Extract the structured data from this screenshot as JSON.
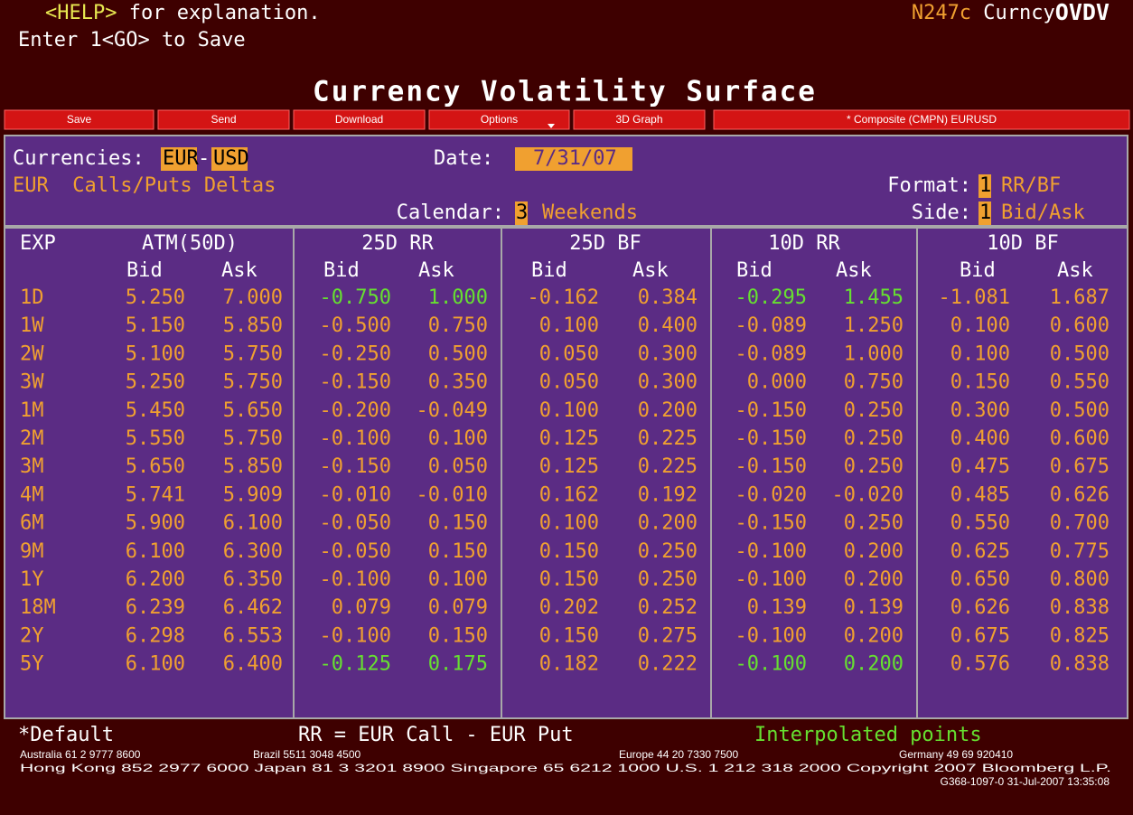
{
  "header": {
    "help_key": "<HELP>",
    "help_text": " for explanation.",
    "save_hint": "Enter 1<GO> to Save",
    "code": "N247c",
    "market": " Curncy",
    "function": "OVDV",
    "title": "Currency Volatility Surface"
  },
  "buttons": [
    "Save",
    "Send",
    "Download",
    "Options",
    "3D Graph",
    "* Composite (CMPN) EURUSD"
  ],
  "settings": {
    "currencies_label": "Currencies:",
    "currency1": "EUR",
    "dash": "-",
    "currency2": "USD",
    "date_label": "Date:",
    "date": "7/31/07",
    "deltas": "EUR  Calls/Puts Deltas",
    "format_label": "Format:",
    "format_code": "1",
    "format_value": "RR/BF",
    "calendar_label": "Calendar:",
    "calendar_code": "3",
    "calendar_value": "Weekends",
    "side_label": "Side:",
    "side_code": "1",
    "side_value": "Bid/Ask"
  },
  "table": {
    "columns": [
      "EXP",
      "ATM(50D)",
      "25D RR",
      "25D BF",
      "10D RR",
      "10D BF"
    ],
    "subheaders": [
      "Bid",
      "Ask",
      "Bid",
      "Ask",
      "Bid",
      "Ask",
      "Bid",
      "Ask",
      "Bid",
      "Ask"
    ],
    "color": "#f0a030",
    "interpolated_color": "#66e030",
    "rows": [
      {
        "exp": "1D",
        "values": [
          "5.250",
          "7.000",
          "-0.750",
          "1.000",
          "-0.162",
          "0.384",
          "-0.295",
          "1.455",
          "-1.081",
          "1.687"
        ],
        "interpolated": [
          2,
          3,
          6,
          7
        ]
      },
      {
        "exp": "1W",
        "values": [
          "5.150",
          "5.850",
          "-0.500",
          "0.750",
          "0.100",
          "0.400",
          "-0.089",
          "1.250",
          "0.100",
          "0.600"
        ]
      },
      {
        "exp": "2W",
        "values": [
          "5.100",
          "5.750",
          "-0.250",
          "0.500",
          "0.050",
          "0.300",
          "-0.089",
          "1.000",
          "0.100",
          "0.500"
        ]
      },
      {
        "exp": "3W",
        "values": [
          "5.250",
          "5.750",
          "-0.150",
          "0.350",
          "0.050",
          "0.300",
          "0.000",
          "0.750",
          "0.150",
          "0.550"
        ]
      },
      {
        "exp": "1M",
        "values": [
          "5.450",
          "5.650",
          "-0.200",
          "-0.049",
          "0.100",
          "0.200",
          "-0.150",
          "0.250",
          "0.300",
          "0.500"
        ]
      },
      {
        "exp": "2M",
        "values": [
          "5.550",
          "5.750",
          "-0.100",
          "0.100",
          "0.125",
          "0.225",
          "-0.150",
          "0.250",
          "0.400",
          "0.600"
        ]
      },
      {
        "exp": "3M",
        "values": [
          "5.650",
          "5.850",
          "-0.150",
          "0.050",
          "0.125",
          "0.225",
          "-0.150",
          "0.250",
          "0.475",
          "0.675"
        ]
      },
      {
        "exp": "4M",
        "values": [
          "5.741",
          "5.909",
          "-0.010",
          "-0.010",
          "0.162",
          "0.192",
          "-0.020",
          "-0.020",
          "0.485",
          "0.626"
        ]
      },
      {
        "exp": "6M",
        "values": [
          "5.900",
          "6.100",
          "-0.050",
          "0.150",
          "0.100",
          "0.200",
          "-0.150",
          "0.250",
          "0.550",
          "0.700"
        ]
      },
      {
        "exp": "9M",
        "values": [
          "6.100",
          "6.300",
          "-0.050",
          "0.150",
          "0.150",
          "0.250",
          "-0.100",
          "0.200",
          "0.625",
          "0.775"
        ]
      },
      {
        "exp": "1Y",
        "values": [
          "6.200",
          "6.350",
          "-0.100",
          "0.100",
          "0.150",
          "0.250",
          "-0.100",
          "0.200",
          "0.650",
          "0.800"
        ]
      },
      {
        "exp": "18M",
        "values": [
          "6.239",
          "6.462",
          "0.079",
          "0.079",
          "0.202",
          "0.252",
          "0.139",
          "0.139",
          "0.626",
          "0.838"
        ]
      },
      {
        "exp": "2Y",
        "values": [
          "6.298",
          "6.553",
          "-0.100",
          "0.150",
          "0.150",
          "0.275",
          "-0.100",
          "0.200",
          "0.675",
          "0.825"
        ]
      },
      {
        "exp": "5Y",
        "values": [
          "6.100",
          "6.400",
          "-0.125",
          "0.175",
          "0.182",
          "0.222",
          "-0.100",
          "0.200",
          "0.576",
          "0.838"
        ],
        "interpolated": [
          2,
          3,
          6,
          7
        ]
      }
    ]
  },
  "footer": {
    "default": "*Default",
    "rr_note": "RR = EUR Call - EUR Put",
    "interpolated": "Interpolated points",
    "australia": "Australia 61 2 9777 8600",
    "brazil": "Brazil 5511 3048 4500",
    "europe": "Europe 44 20 7330 7500",
    "germany": "Germany 49 69 920410",
    "line2": "Hong Kong 852 2977 6000 Japan 81 3 3201 8900 Singapore 65 6212 1000 U.S. 1 212 318 2000 Copyright 2007 Bloomberg L.P.",
    "line3": "G368-1097-0 31-Jul-2007 13:35:08"
  }
}
